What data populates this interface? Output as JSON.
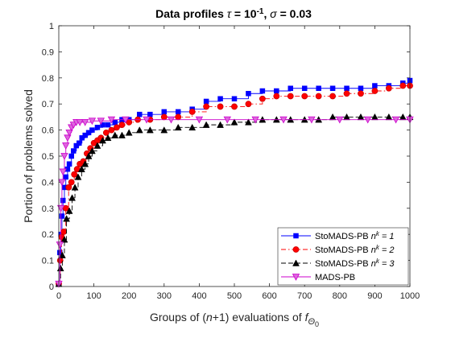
{
  "chart_data": {
    "type": "line",
    "title": {
      "prefix": "Data profiles ",
      "tau_symbol": "τ",
      "tau_eq": " = 10",
      "tau_exp": "-1",
      "sep": ", ",
      "sigma_symbol": "σ",
      "sigma_eq": " = 0.03"
    },
    "xlabel": {
      "main": "Groups of (",
      "n": "n",
      "plus1": "+1) evaluations of ",
      "f": "f",
      "sub_theta": "Θ",
      "sub_zero": "0"
    },
    "ylabel": "Portion of problems solved",
    "xlim": [
      0,
      1000
    ],
    "ylim": [
      0,
      1
    ],
    "x_ticks": [
      "0",
      "100",
      "200",
      "300",
      "400",
      "500",
      "600",
      "700",
      "800",
      "900",
      "1000"
    ],
    "y_ticks": [
      "0",
      "0.1",
      "0.2",
      "0.3",
      "0.4",
      "0.5",
      "0.6",
      "0.7",
      "0.8",
      "0.9",
      "1"
    ],
    "legend_position": "bottom-right",
    "series": [
      {
        "name_main": "StoMADS-PB ",
        "name_n": "n",
        "name_sup": "k",
        "name_eq": " = 1",
        "color": "#0000ff",
        "line": "solid",
        "marker": "square",
        "points": [
          [
            0,
            0.01
          ],
          [
            3,
            0.13
          ],
          [
            6,
            0.2
          ],
          [
            9,
            0.27
          ],
          [
            12,
            0.33
          ],
          [
            16,
            0.38
          ],
          [
            20,
            0.42
          ],
          [
            25,
            0.45
          ],
          [
            30,
            0.47
          ],
          [
            36,
            0.5
          ],
          [
            42,
            0.52
          ],
          [
            50,
            0.54
          ],
          [
            58,
            0.55
          ],
          [
            66,
            0.57
          ],
          [
            75,
            0.58
          ],
          [
            85,
            0.59
          ],
          [
            95,
            0.6
          ],
          [
            110,
            0.61
          ],
          [
            125,
            0.62
          ],
          [
            140,
            0.62
          ],
          [
            160,
            0.63
          ],
          [
            180,
            0.64
          ],
          [
            200,
            0.64
          ],
          [
            230,
            0.66
          ],
          [
            260,
            0.66
          ],
          [
            300,
            0.67
          ],
          [
            340,
            0.67
          ],
          [
            380,
            0.68
          ],
          [
            420,
            0.71
          ],
          [
            460,
            0.72
          ],
          [
            500,
            0.72
          ],
          [
            540,
            0.74
          ],
          [
            580,
            0.75
          ],
          [
            620,
            0.75
          ],
          [
            660,
            0.76
          ],
          [
            700,
            0.76
          ],
          [
            740,
            0.76
          ],
          [
            780,
            0.76
          ],
          [
            820,
            0.76
          ],
          [
            860,
            0.76
          ],
          [
            900,
            0.77
          ],
          [
            940,
            0.77
          ],
          [
            980,
            0.78
          ],
          [
            1000,
            0.79
          ]
        ]
      },
      {
        "name_main": "StoMADS-PB ",
        "name_n": "n",
        "name_sup": "k",
        "name_eq": " = 2",
        "color": "#ff0000",
        "line": "dashdot",
        "marker": "circle",
        "points": [
          [
            0,
            0.01
          ],
          [
            4,
            0.1
          ],
          [
            8,
            0.19
          ],
          [
            14,
            0.21
          ],
          [
            20,
            0.3
          ],
          [
            28,
            0.38
          ],
          [
            36,
            0.4
          ],
          [
            44,
            0.43
          ],
          [
            52,
            0.45
          ],
          [
            60,
            0.47
          ],
          [
            70,
            0.48
          ],
          [
            80,
            0.51
          ],
          [
            90,
            0.53
          ],
          [
            100,
            0.55
          ],
          [
            110,
            0.56
          ],
          [
            120,
            0.57
          ],
          [
            135,
            0.59
          ],
          [
            150,
            0.6
          ],
          [
            165,
            0.61
          ],
          [
            180,
            0.62
          ],
          [
            200,
            0.63
          ],
          [
            225,
            0.64
          ],
          [
            260,
            0.64
          ],
          [
            300,
            0.65
          ],
          [
            340,
            0.65
          ],
          [
            380,
            0.67
          ],
          [
            420,
            0.69
          ],
          [
            460,
            0.69
          ],
          [
            500,
            0.69
          ],
          [
            540,
            0.7
          ],
          [
            580,
            0.72
          ],
          [
            620,
            0.73
          ],
          [
            660,
            0.73
          ],
          [
            700,
            0.73
          ],
          [
            740,
            0.73
          ],
          [
            780,
            0.73
          ],
          [
            820,
            0.74
          ],
          [
            860,
            0.74
          ],
          [
            900,
            0.75
          ],
          [
            940,
            0.76
          ],
          [
            980,
            0.77
          ],
          [
            1000,
            0.77
          ]
        ]
      },
      {
        "name_main": "StoMADS-PB ",
        "name_n": "n",
        "name_sup": "k",
        "name_eq": " = 3",
        "color": "#000000",
        "line": "dashed",
        "marker": "triangle-up",
        "points": [
          [
            0,
            0.01
          ],
          [
            5,
            0.07
          ],
          [
            10,
            0.12
          ],
          [
            16,
            0.18
          ],
          [
            22,
            0.26
          ],
          [
            30,
            0.29
          ],
          [
            38,
            0.34
          ],
          [
            46,
            0.38
          ],
          [
            55,
            0.42
          ],
          [
            65,
            0.45
          ],
          [
            75,
            0.47
          ],
          [
            85,
            0.5
          ],
          [
            95,
            0.52
          ],
          [
            110,
            0.54
          ],
          [
            125,
            0.56
          ],
          [
            140,
            0.57
          ],
          [
            160,
            0.58
          ],
          [
            180,
            0.58
          ],
          [
            200,
            0.59
          ],
          [
            230,
            0.6
          ],
          [
            260,
            0.6
          ],
          [
            300,
            0.6
          ],
          [
            340,
            0.61
          ],
          [
            380,
            0.61
          ],
          [
            420,
            0.62
          ],
          [
            460,
            0.62
          ],
          [
            500,
            0.63
          ],
          [
            540,
            0.63
          ],
          [
            580,
            0.64
          ],
          [
            620,
            0.64
          ],
          [
            660,
            0.64
          ],
          [
            700,
            0.64
          ],
          [
            740,
            0.64
          ],
          [
            780,
            0.65
          ],
          [
            820,
            0.65
          ],
          [
            860,
            0.65
          ],
          [
            900,
            0.65
          ],
          [
            940,
            0.65
          ],
          [
            980,
            0.65
          ],
          [
            1000,
            0.65
          ]
        ]
      },
      {
        "name_main": "MADS-PB",
        "name_n": "",
        "name_sup": "",
        "name_eq": "",
        "color": "#cc00cc",
        "line": "solid",
        "marker": "triangle-down",
        "points": [
          [
            0,
            0.01
          ],
          [
            3,
            0.16
          ],
          [
            6,
            0.3
          ],
          [
            9,
            0.4
          ],
          [
            12,
            0.44
          ],
          [
            16,
            0.5
          ],
          [
            20,
            0.54
          ],
          [
            25,
            0.57
          ],
          [
            30,
            0.59
          ],
          [
            36,
            0.61
          ],
          [
            42,
            0.62
          ],
          [
            50,
            0.63
          ],
          [
            60,
            0.63
          ],
          [
            75,
            0.63
          ],
          [
            95,
            0.635
          ],
          [
            120,
            0.635
          ],
          [
            150,
            0.64
          ],
          [
            190,
            0.64
          ],
          [
            250,
            0.64
          ],
          [
            320,
            0.64
          ],
          [
            400,
            0.64
          ],
          [
            480,
            0.64
          ],
          [
            560,
            0.64
          ],
          [
            640,
            0.64
          ],
          [
            720,
            0.64
          ],
          [
            800,
            0.64
          ],
          [
            880,
            0.64
          ],
          [
            960,
            0.64
          ],
          [
            1000,
            0.64
          ]
        ]
      }
    ]
  }
}
